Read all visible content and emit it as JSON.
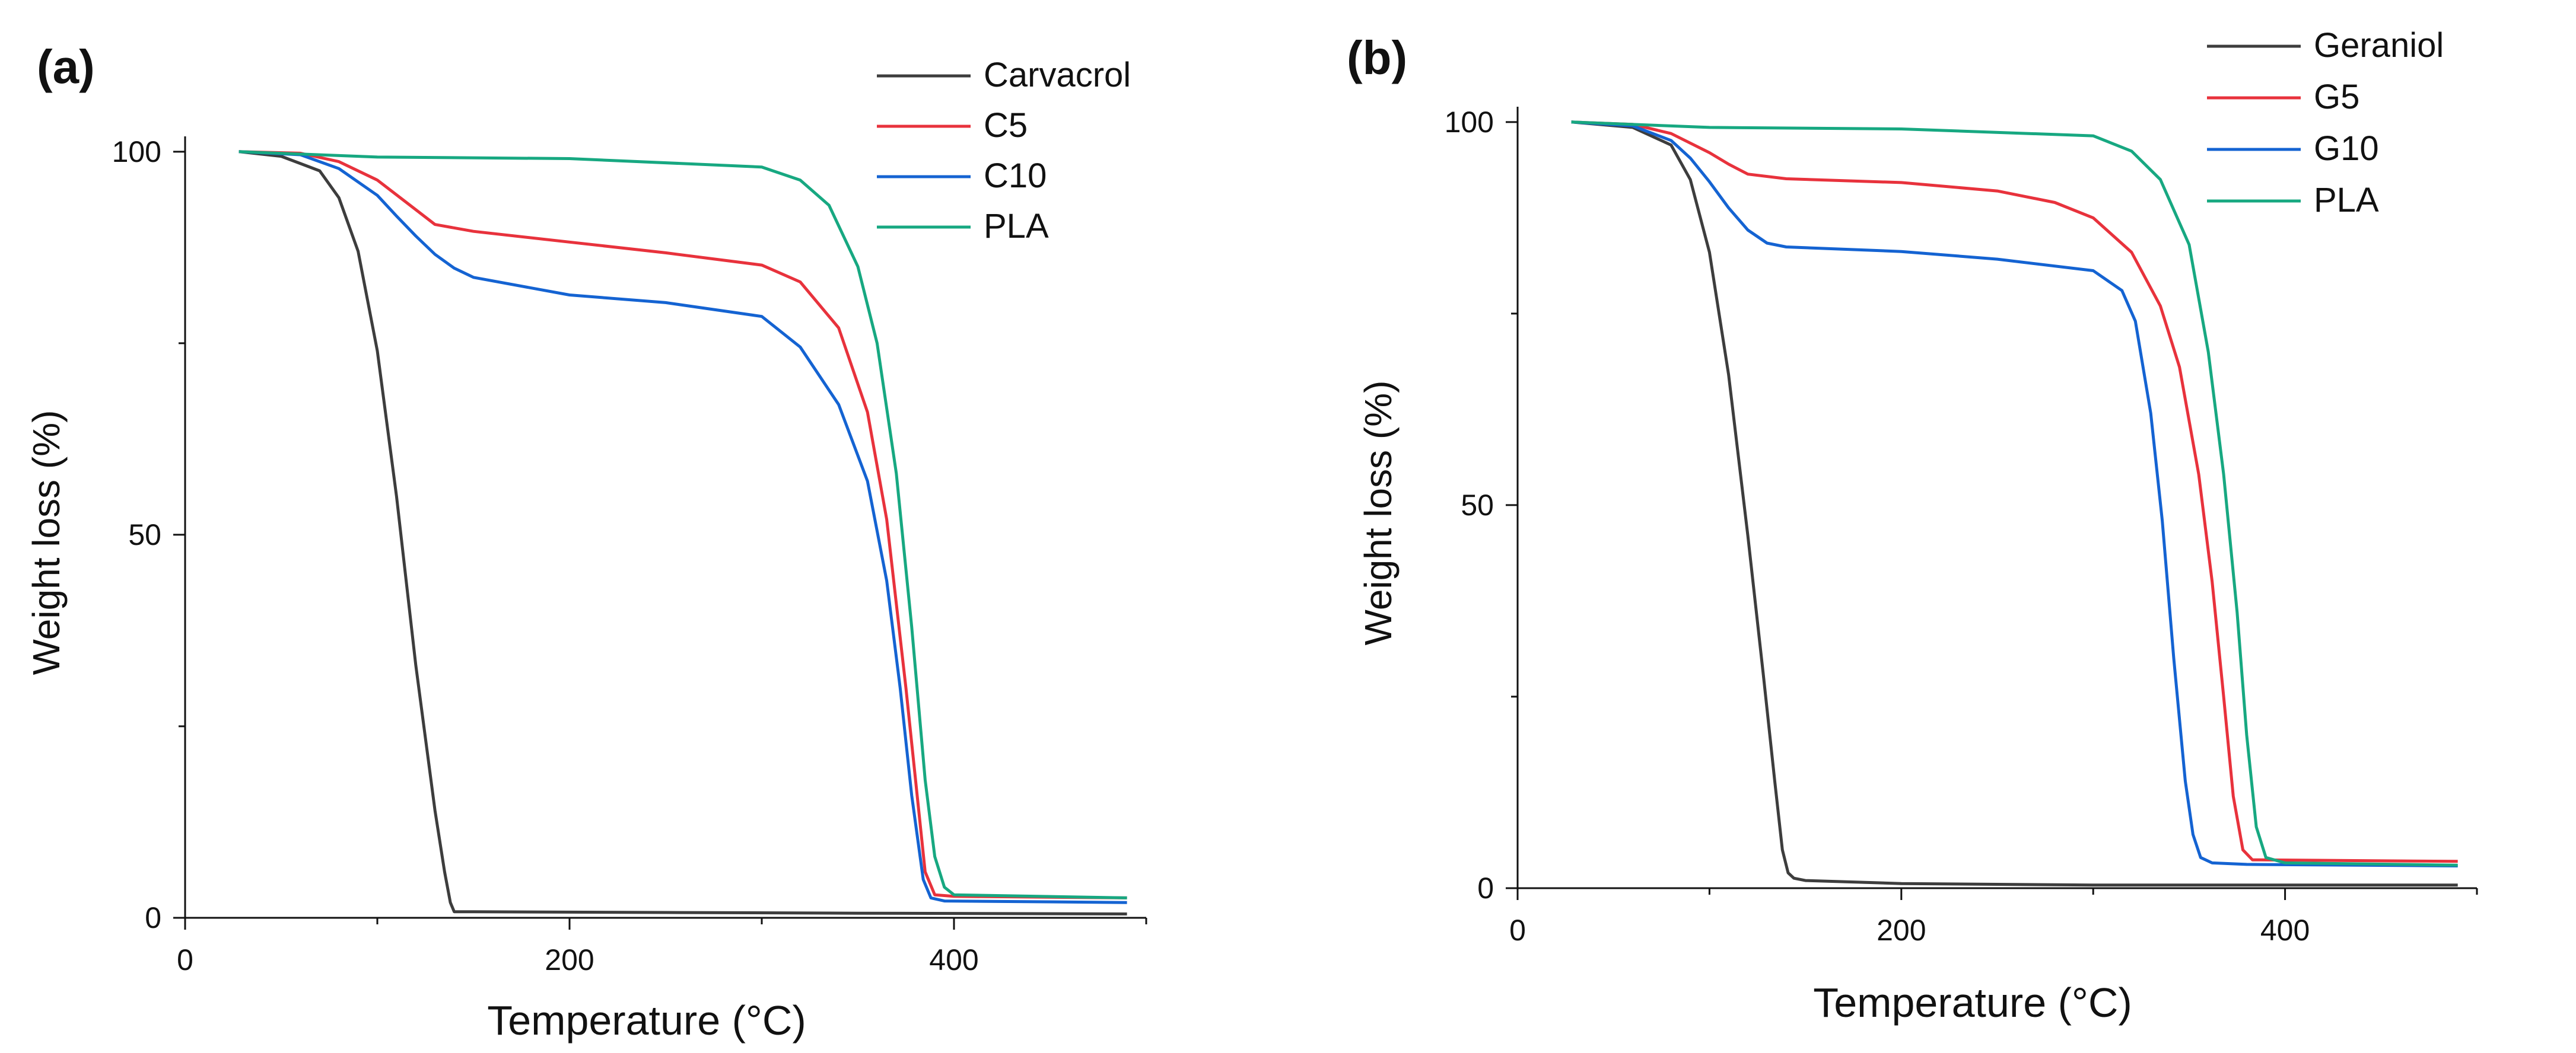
{
  "chart_data": [
    {
      "type": "line",
      "panel_label": "(a)",
      "title": "",
      "xlabel": "Temperature (°C)",
      "ylabel": "Weight loss (%)",
      "xlim": [
        0,
        500
      ],
      "ylim": [
        0,
        102
      ],
      "xticks": [
        0,
        200,
        400
      ],
      "yticks": [
        0,
        50,
        100
      ],
      "grid": false,
      "legend_position": "top-right",
      "series": [
        {
          "name": "Carvacrol",
          "color": "#3d3d3d",
          "x": [
            28,
            50,
            70,
            80,
            90,
            100,
            110,
            120,
            130,
            135,
            138,
            140,
            150,
            250,
            350,
            490
          ],
          "y": [
            100,
            99.4,
            97.5,
            94,
            87,
            74,
            55,
            33,
            14,
            6,
            2,
            0.8,
            0.8,
            0.7,
            0.6,
            0.5
          ]
        },
        {
          "name": "C5",
          "color": "#e8323c",
          "x": [
            28,
            60,
            80,
            100,
            115,
            130,
            150,
            200,
            250,
            300,
            320,
            340,
            355,
            365,
            375,
            380,
            385,
            390,
            400,
            490
          ],
          "y": [
            100,
            99.8,
            98.7,
            96.3,
            93.4,
            90.5,
            89.6,
            88.2,
            86.8,
            85.2,
            83,
            77,
            66,
            52,
            30,
            18,
            6,
            3,
            2.8,
            2.6
          ]
        },
        {
          "name": "C10",
          "color": "#1463d2",
          "x": [
            28,
            60,
            80,
            100,
            110,
            120,
            130,
            140,
            150,
            200,
            250,
            300,
            320,
            340,
            355,
            365,
            372,
            378,
            384,
            388,
            395,
            490
          ],
          "y": [
            100,
            99.6,
            97.8,
            94.3,
            91.6,
            89,
            86.6,
            84.8,
            83.6,
            81.3,
            80.3,
            78.5,
            74.5,
            67,
            57,
            44,
            30,
            16,
            5,
            2.6,
            2.2,
            2
          ]
        },
        {
          "name": "PLA",
          "color": "#17a881",
          "x": [
            28,
            100,
            200,
            300,
            320,
            335,
            350,
            360,
            370,
            378,
            385,
            390,
            395,
            400,
            490
          ],
          "y": [
            100,
            99.3,
            99.1,
            98,
            96.3,
            93,
            85,
            75,
            58,
            38,
            18,
            8,
            4,
            3,
            2.6
          ]
        }
      ]
    },
    {
      "type": "line",
      "panel_label": "(b)",
      "title": "",
      "xlabel": "Temperature (°C)",
      "ylabel": "Weight loss (%)",
      "xlim": [
        0,
        500
      ],
      "ylim": [
        0,
        102
      ],
      "xticks": [
        0,
        200,
        400
      ],
      "yticks": [
        0,
        50,
        100
      ],
      "grid": false,
      "legend_position": "top-right",
      "series": [
        {
          "name": "Geraniol",
          "color": "#3d3d3d",
          "x": [
            28,
            60,
            80,
            90,
            100,
            110,
            120,
            128,
            134,
            138,
            141,
            144,
            150,
            200,
            300,
            490
          ],
          "y": [
            100,
            99.3,
            97,
            92.5,
            83,
            67,
            46,
            28,
            14,
            5,
            2,
            1.3,
            1,
            0.6,
            0.4,
            0.4
          ]
        },
        {
          "name": "G5",
          "color": "#e8323c",
          "x": [
            28,
            60,
            80,
            100,
            110,
            120,
            140,
            200,
            250,
            280,
            300,
            320,
            335,
            345,
            355,
            362,
            368,
            373,
            378,
            383,
            490
          ],
          "y": [
            100,
            99.7,
            98.5,
            96,
            94.5,
            93.2,
            92.6,
            92.1,
            91,
            89.5,
            87.5,
            83,
            76,
            68,
            54,
            40,
            25,
            12,
            5,
            3.7,
            3.5
          ]
        },
        {
          "name": "G10",
          "color": "#1463d2",
          "x": [
            28,
            60,
            80,
            90,
            100,
            110,
            120,
            130,
            140,
            200,
            250,
            300,
            315,
            322,
            330,
            336,
            342,
            348,
            352,
            356,
            362,
            380,
            490
          ],
          "y": [
            100,
            99.5,
            97.6,
            95.3,
            92.2,
            88.8,
            85.9,
            84.2,
            83.7,
            83.1,
            82.1,
            80.6,
            78,
            74,
            62,
            48,
            30,
            14,
            7,
            4,
            3.3,
            3.1,
            2.9
          ]
        },
        {
          "name": "PLA",
          "color": "#17a881",
          "x": [
            28,
            100,
            200,
            300,
            320,
            335,
            350,
            360,
            368,
            375,
            380,
            385,
            390,
            400,
            490
          ],
          "y": [
            100,
            99.3,
            99.1,
            98.2,
            96.2,
            92.5,
            84,
            70,
            54,
            36,
            20,
            8,
            4,
            3.3,
            3
          ]
        }
      ]
    }
  ]
}
